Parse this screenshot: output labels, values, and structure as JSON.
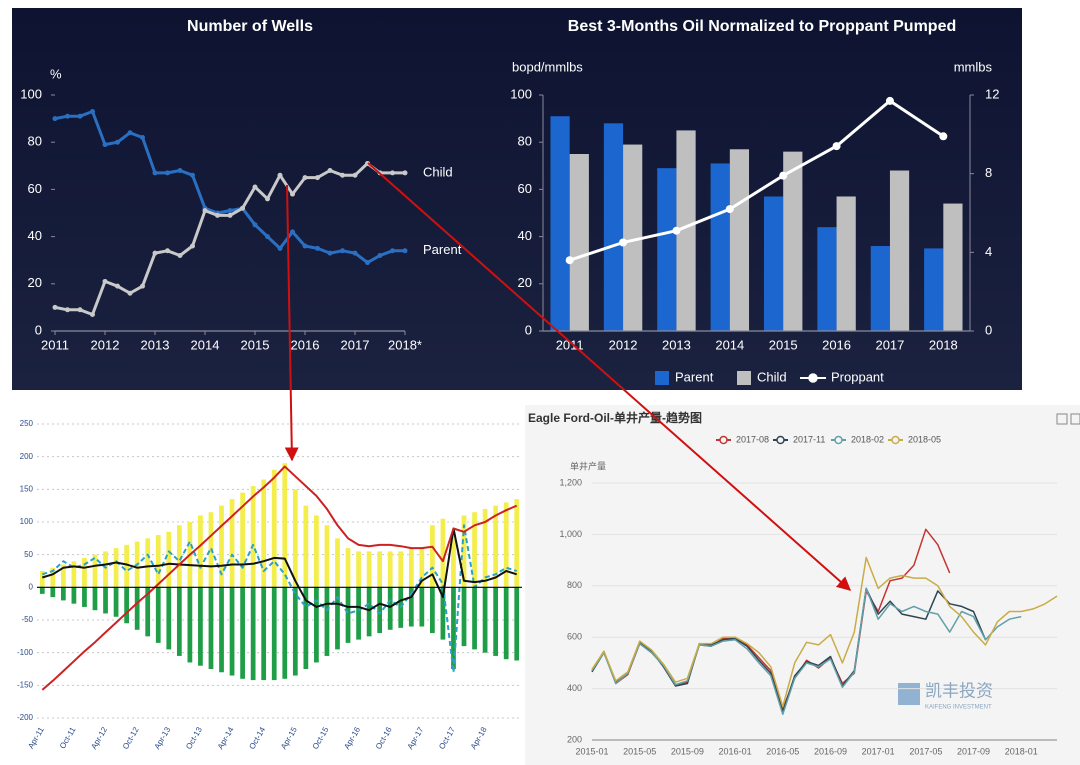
{
  "chart_data": [
    {
      "type": "line",
      "title": "Number of Wells",
      "y_label": "%",
      "x": [
        2011,
        2011.25,
        2011.5,
        2011.75,
        2012,
        2012.25,
        2012.5,
        2012.75,
        2013,
        2013.25,
        2013.5,
        2013.75,
        2014,
        2014.25,
        2014.5,
        2014.75,
        2015,
        2015.25,
        2015.5,
        2015.75,
        2016,
        2016.25,
        2016.5,
        2016.75,
        2017,
        2017.25,
        2017.5,
        2017.75,
        2018
      ],
      "xlim": [
        2011,
        2018
      ],
      "xticks": [
        2011,
        2012,
        2013,
        2014,
        2015,
        2016,
        2017,
        {
          "value": 2018,
          "label": "2018*"
        }
      ],
      "ylim": [
        0,
        100
      ],
      "yticks": [
        0,
        20,
        40,
        60,
        80,
        100
      ],
      "grid": false,
      "series": [
        {
          "name": "Parent",
          "color": "#2b6fc2",
          "values": [
            90,
            91,
            91,
            93,
            79,
            80,
            84,
            82,
            67,
            67,
            68,
            66,
            52,
            50,
            51,
            52,
            45,
            40,
            35,
            42,
            36,
            35,
            33,
            34,
            33,
            29,
            32,
            34,
            34
          ]
        },
        {
          "name": "Child",
          "color": "#c9c9c9",
          "values": [
            10,
            9,
            9,
            7,
            21,
            19,
            16,
            19,
            33,
            34,
            32,
            36,
            51,
            49,
            49,
            52,
            61,
            56,
            66,
            58,
            65,
            65,
            68,
            66,
            66,
            71,
            67,
            67,
            67
          ]
        }
      ]
    },
    {
      "type": "bar",
      "title": "Best 3-Months Oil Normalized to Proppant Pumped",
      "y_label": "bopd/mmlbs",
      "y2_label": "mmlbs",
      "categories": [
        "2011",
        "2012",
        "2013",
        "2014",
        "2015",
        "2016",
        "2017",
        "2018"
      ],
      "ylim": [
        0,
        100
      ],
      "yticks": [
        0,
        20,
        40,
        60,
        80,
        100
      ],
      "y2lim": [
        0,
        12
      ],
      "y2ticks": [
        0,
        4,
        8,
        12
      ],
      "grid": false,
      "legend": "bottom",
      "series": [
        {
          "name": "Parent",
          "color": "#1c67cf",
          "values": [
            91,
            88,
            69,
            71,
            57,
            44,
            36,
            35
          ]
        },
        {
          "name": "Child",
          "color": "#bfbfbf",
          "values": [
            75,
            79,
            85,
            77,
            76,
            57,
            68,
            54
          ]
        },
        {
          "name": "Proppant",
          "type": "line",
          "axis": "y2",
          "color": "#ffffff",
          "values": [
            3.6,
            4.5,
            5.1,
            6.2,
            7.9,
            9.4,
            11.7,
            9.9
          ]
        }
      ]
    },
    {
      "type": "bar",
      "categories": [
        "Apr-11",
        null,
        null,
        "Oct-11",
        null,
        null,
        "Apr-12",
        null,
        null,
        "Oct-12",
        null,
        null,
        "Apr-13",
        null,
        null,
        "Oct-13",
        null,
        null,
        "Apr-14",
        null,
        null,
        "Oct-14",
        null,
        null,
        "Apr-15",
        null,
        null,
        "Oct-15",
        null,
        null,
        "Apr-16",
        null,
        null,
        "Oct-16",
        null,
        null,
        "Apr-17",
        null,
        null,
        "Oct-17",
        null,
        null,
        "Apr-18",
        null,
        null,
        null
      ],
      "ylim": [
        -200,
        250
      ],
      "yticks": [
        -200,
        -150,
        -100,
        -50,
        0,
        50,
        100,
        150,
        200,
        250
      ],
      "grid": true,
      "series": [
        {
          "color": "#f3ee4c",
          "values": [
            25,
            30,
            35,
            40,
            45,
            50,
            55,
            60,
            65,
            70,
            75,
            80,
            85,
            95,
            100,
            110,
            115,
            125,
            135,
            145,
            155,
            165,
            180,
            190,
            150,
            125,
            110,
            95,
            75,
            60,
            55,
            55,
            55,
            55,
            55,
            60,
            60,
            95,
            105,
            80,
            110,
            115,
            120,
            125,
            130,
            135
          ]
        },
        {
          "color": "#1f9e47",
          "values": [
            -10,
            -15,
            -20,
            -25,
            -30,
            -35,
            -40,
            -45,
            -55,
            -65,
            -75,
            -85,
            -95,
            -105,
            -115,
            -120,
            -125,
            -130,
            -135,
            -140,
            -142,
            -142,
            -142,
            -140,
            -135,
            -125,
            -115,
            -105,
            -95,
            -85,
            -80,
            -75,
            -70,
            -65,
            -62,
            -60,
            -60,
            -70,
            -80,
            -125,
            -90,
            -95,
            -100,
            -105,
            -110,
            -112
          ]
        },
        {
          "type": "line",
          "dashed": true,
          "color": "#2aa0c8",
          "values": [
            20,
            25,
            40,
            30,
            35,
            45,
            30,
            40,
            25,
            35,
            50,
            20,
            55,
            40,
            70,
            30,
            60,
            20,
            50,
            30,
            65,
            25,
            40,
            20,
            -10,
            -30,
            -20,
            -35,
            -15,
            -40,
            -35,
            -25,
            -40,
            -20,
            -30,
            -10,
            15,
            30,
            5,
            -130,
            95,
            0,
            15,
            20,
            30,
            25
          ]
        },
        {
          "type": "line",
          "color": "#111111",
          "values": [
            15,
            20,
            30,
            32,
            30,
            33,
            35,
            38,
            35,
            30,
            32,
            33,
            36,
            35,
            34,
            33,
            32,
            33,
            35,
            35,
            36,
            40,
            45,
            44,
            10,
            -20,
            -30,
            -25,
            -25,
            -30,
            -30,
            -35,
            -25,
            -30,
            -20,
            -15,
            10,
            20,
            -15,
            90,
            10,
            8,
            10,
            15,
            25,
            20
          ]
        },
        {
          "type": "line",
          "color": "#cc2222",
          "values": [
            -157,
            -143,
            -128,
            -113,
            -98,
            -84,
            -69,
            -54,
            -39,
            -24,
            -10,
            5,
            20,
            35,
            50,
            64,
            79,
            94,
            109,
            124,
            139,
            153,
            168,
            185,
            170,
            155,
            140,
            120,
            95,
            75,
            65,
            63,
            65,
            65,
            63,
            60,
            60,
            62,
            40,
            90,
            85,
            95,
            100,
            110,
            118,
            125
          ]
        }
      ]
    },
    {
      "type": "line",
      "title": "Eagle Ford-Oil-单井产量-趋势图",
      "y_label": "单井产量",
      "legend": "top",
      "watermark": {
        "text": "凯丰投资",
        "subtext": "KAIFENG INVESTMENT"
      },
      "categories": [
        "2015-01",
        null,
        null,
        null,
        "2015-05",
        null,
        null,
        null,
        "2015-09",
        null,
        null,
        null,
        "2016-01",
        null,
        null,
        null,
        "2016-05",
        null,
        null,
        null,
        "2016-09",
        null,
        null,
        null,
        "2017-01",
        null,
        null,
        null,
        "2017-05",
        null,
        null,
        null,
        "2017-09",
        null,
        null,
        null,
        "2018-01",
        null,
        null,
        null
      ],
      "ylim": [
        200,
        1200
      ],
      "yticks": [
        200,
        400,
        600,
        800,
        {
          "value": 1000,
          "label": "1,000"
        },
        {
          "value": 1200,
          "label": "1,200"
        }
      ],
      "grid": true,
      "series": [
        {
          "name": "2017-08",
          "color": "#c23531",
          "values": [
            470,
            545,
            420,
            455,
            575,
            540,
            490,
            415,
            425,
            570,
            565,
            595,
            600,
            570,
            520,
            470,
            320,
            440,
            510,
            480,
            520,
            420,
            460,
            780,
            700,
            820,
            830,
            880,
            1020,
            960,
            850,
            null,
            null,
            null,
            null,
            null,
            null,
            null,
            null,
            null
          ]
        },
        {
          "name": "2017-11",
          "color": "#2f4554",
          "values": [
            465,
            540,
            425,
            460,
            580,
            545,
            485,
            410,
            420,
            575,
            570,
            590,
            595,
            565,
            510,
            460,
            310,
            450,
            505,
            490,
            525,
            410,
            470,
            790,
            690,
            740,
            690,
            680,
            670,
            780,
            730,
            720,
            700,
            590,
            null,
            null,
            null,
            null,
            null,
            null
          ]
        },
        {
          "name": "2018-02",
          "color": "#61a0a8",
          "values": [
            470,
            540,
            420,
            460,
            575,
            540,
            490,
            415,
            430,
            570,
            565,
            585,
            590,
            555,
            500,
            450,
            300,
            440,
            500,
            485,
            515,
            405,
            465,
            790,
            670,
            730,
            700,
            720,
            700,
            690,
            620,
            700,
            680,
            590,
            640,
            670,
            680,
            null,
            null,
            null
          ]
        },
        {
          "name": "2018-05",
          "color": "#c9ac45",
          "values": [
            475,
            545,
            430,
            465,
            585,
            550,
            495,
            425,
            440,
            575,
            575,
            600,
            600,
            575,
            540,
            485,
            330,
            500,
            580,
            570,
            610,
            500,
            620,
            910,
            790,
            830,
            840,
            830,
            830,
            800,
            720,
            680,
            620,
            570,
            660,
            700,
            700,
            710,
            730,
            760
          ]
        }
      ]
    }
  ]
}
